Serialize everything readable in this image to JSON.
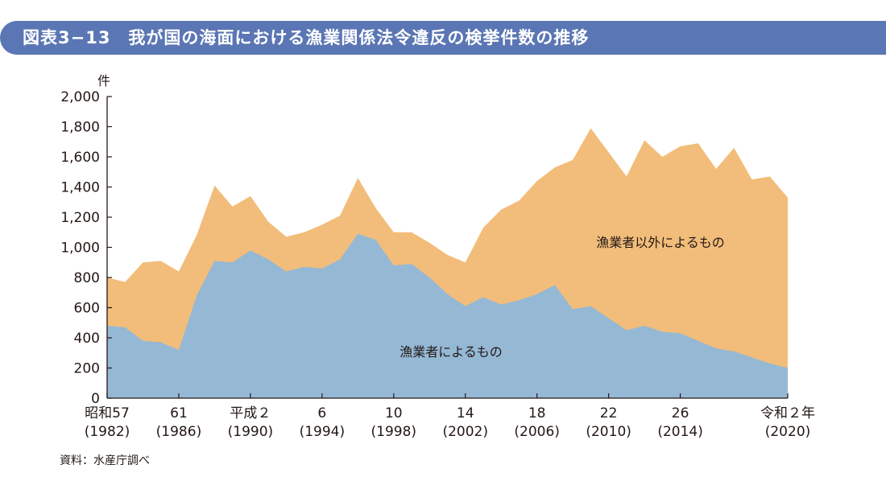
{
  "header": {
    "title": "図表3−13　我が国の海面における漁業関係法令違反の検挙件数の推移"
  },
  "source_note": "資料：水産庁調べ",
  "colors": {
    "title_bar": "#5b76b4",
    "fishermen": "#95b8d5",
    "non_fishermen": "#f2bd7a",
    "text": "#231815"
  },
  "chart_data": {
    "type": "area",
    "stacked": true,
    "ylabel": "件",
    "ylim": [
      0,
      2000
    ],
    "yticks": [
      "0",
      "200",
      "400",
      "600",
      "800",
      "1,000",
      "1,200",
      "1,400",
      "1,600",
      "1,800",
      "2,000"
    ],
    "ytick_values": [
      0,
      200,
      400,
      600,
      800,
      1000,
      1200,
      1400,
      1600,
      1800,
      2000
    ],
    "xlim": [
      1982,
      2020
    ],
    "x": [
      1982,
      1983,
      1984,
      1985,
      1986,
      1987,
      1988,
      1989,
      1990,
      1991,
      1992,
      1993,
      1994,
      1995,
      1996,
      1997,
      1998,
      1999,
      2000,
      2001,
      2002,
      2003,
      2004,
      2005,
      2006,
      2007,
      2008,
      2009,
      2010,
      2011,
      2012,
      2013,
      2014,
      2015,
      2016,
      2017,
      2018,
      2019,
      2020
    ],
    "xticks": [
      {
        "x": 1982,
        "era": "昭和57",
        "year": "(1982)"
      },
      {
        "x": 1986,
        "era": "61",
        "year": "(1986)"
      },
      {
        "x": 1990,
        "era": "平成２",
        "year": "(1990)"
      },
      {
        "x": 1994,
        "era": "6",
        "year": "(1994)"
      },
      {
        "x": 1998,
        "era": "10",
        "year": "(1998)"
      },
      {
        "x": 2002,
        "era": "14",
        "year": "(2002)"
      },
      {
        "x": 2006,
        "era": "18",
        "year": "(2006)"
      },
      {
        "x": 2010,
        "era": "22",
        "year": "(2010)"
      },
      {
        "x": 2014,
        "era": "26",
        "year": "(2014)"
      },
      {
        "x": 2020,
        "era": "令和２年",
        "year": "(2020)"
      }
    ],
    "series": [
      {
        "name": "漁業者によるもの",
        "values": [
          480,
          470,
          380,
          370,
          320,
          680,
          910,
          900,
          980,
          920,
          840,
          870,
          860,
          920,
          1090,
          1050,
          880,
          890,
          800,
          690,
          610,
          670,
          620,
          650,
          690,
          750,
          590,
          610,
          530,
          450,
          480,
          440,
          430,
          380,
          330,
          310,
          270,
          230,
          200
        ]
      },
      {
        "name": "漁業者以外によるもの",
        "values": [
          320,
          300,
          520,
          540,
          520,
          400,
          500,
          370,
          360,
          250,
          230,
          230,
          290,
          290,
          370,
          210,
          220,
          210,
          230,
          260,
          290,
          460,
          630,
          660,
          750,
          780,
          990,
          1180,
          1100,
          1020,
          1230,
          1160,
          1240,
          1310,
          1190,
          1350,
          1180,
          1240,
          1130
        ]
      }
    ]
  }
}
